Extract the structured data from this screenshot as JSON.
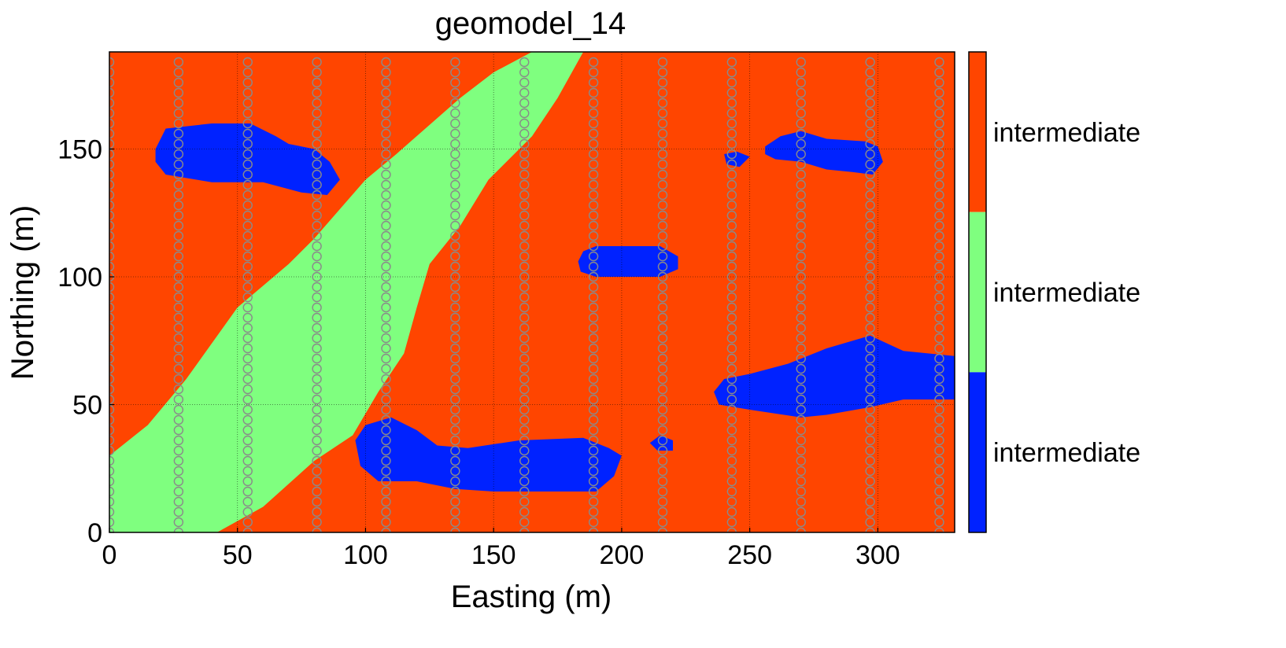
{
  "chart_data": {
    "type": "heatmap",
    "title": "geomodel_14",
    "xlabel": "Easting (m)",
    "ylabel": "Northing (m)",
    "xlim": [
      0,
      330
    ],
    "ylim": [
      0,
      188
    ],
    "xticks": [
      0,
      50,
      100,
      150,
      200,
      250,
      300
    ],
    "yticks": [
      0,
      50,
      100,
      150
    ],
    "grid": true,
    "colorbar": {
      "position": "right",
      "labels": [
        "intermediate",
        "intermediate",
        "intermediate"
      ],
      "colors": [
        "#ff4500",
        "#7fff7f",
        "#0022ff"
      ]
    },
    "facies": {
      "background": {
        "color": "#ff4500"
      },
      "channel": {
        "color": "#7fff7f",
        "lower_edge": [
          [
            0,
            30
          ],
          [
            15,
            42
          ],
          [
            30,
            60
          ],
          [
            50,
            88
          ],
          [
            70,
            105
          ],
          [
            80,
            115
          ],
          [
            100,
            138
          ],
          [
            112,
            148
          ],
          [
            137,
            170
          ],
          [
            150,
            180
          ],
          [
            165,
            188
          ]
        ],
        "upper_edge": [
          [
            42,
            0
          ],
          [
            60,
            10
          ],
          [
            80,
            28
          ],
          [
            95,
            38
          ],
          [
            105,
            55
          ],
          [
            115,
            70
          ],
          [
            120,
            88
          ],
          [
            125,
            105
          ],
          [
            137,
            120
          ],
          [
            148,
            138
          ],
          [
            165,
            155
          ],
          [
            175,
            170
          ],
          [
            185,
            188
          ]
        ]
      },
      "lenses": [
        {
          "color": "#0022ff",
          "outline": [
            [
              18,
              150
            ],
            [
              22,
              158
            ],
            [
              40,
              160
            ],
            [
              55,
              160
            ],
            [
              65,
              155
            ],
            [
              70,
              152
            ],
            [
              80,
              150
            ],
            [
              86,
              145
            ],
            [
              90,
              138
            ],
            [
              85,
              132
            ],
            [
              75,
              133
            ],
            [
              60,
              137
            ],
            [
              40,
              137
            ],
            [
              22,
              140
            ],
            [
              18,
              145
            ]
          ]
        },
        {
          "color": "#0022ff",
          "outline": [
            [
              96,
              36
            ],
            [
              100,
              42
            ],
            [
              110,
              45
            ],
            [
              120,
              40
            ],
            [
              128,
              34
            ],
            [
              140,
              33
            ],
            [
              160,
              36
            ],
            [
              185,
              37
            ],
            [
              195,
              33
            ],
            [
              200,
              30
            ],
            [
              197,
              22
            ],
            [
              190,
              16
            ],
            [
              180,
              16
            ],
            [
              165,
              16
            ],
            [
              150,
              16
            ],
            [
              135,
              17
            ],
            [
              120,
              20
            ],
            [
              105,
              20
            ],
            [
              98,
              26
            ]
          ]
        },
        {
          "color": "#0022ff",
          "outline": [
            [
              183,
              106
            ],
            [
              185,
              110
            ],
            [
              190,
              112
            ],
            [
              215,
              112
            ],
            [
              222,
              108
            ],
            [
              222,
              103
            ],
            [
              215,
              100
            ],
            [
              190,
              100
            ],
            [
              184,
              102
            ]
          ]
        },
        {
          "color": "#0022ff",
          "outline": [
            [
              211,
              35
            ],
            [
              215,
              38
            ],
            [
              220,
              36
            ],
            [
              220,
              32
            ],
            [
              214,
              32
            ]
          ]
        },
        {
          "color": "#0022ff",
          "outline": [
            [
              240,
              148
            ],
            [
              245,
              149
            ],
            [
              250,
              147
            ],
            [
              246,
              143
            ],
            [
              241,
              144
            ]
          ]
        },
        {
          "color": "#0022ff",
          "outline": [
            [
              256,
              151
            ],
            [
              262,
              155
            ],
            [
              270,
              157
            ],
            [
              280,
              154
            ],
            [
              295,
              153
            ],
            [
              300,
              151
            ],
            [
              302,
              145
            ],
            [
              298,
              140
            ],
            [
              290,
              141
            ],
            [
              280,
              142
            ],
            [
              270,
              145
            ],
            [
              260,
              146
            ],
            [
              256,
              148
            ]
          ]
        },
        {
          "color": "#0022ff",
          "outline": [
            [
              236,
              55
            ],
            [
              240,
              60
            ],
            [
              250,
              62
            ],
            [
              265,
              66
            ],
            [
              280,
              72
            ],
            [
              297,
              77
            ],
            [
              310,
              71
            ],
            [
              330,
              69
            ],
            [
              330,
              52
            ],
            [
              310,
              52
            ],
            [
              297,
              49
            ],
            [
              280,
              46
            ],
            [
              270,
              45
            ],
            [
              250,
              48
            ],
            [
              238,
              50
            ]
          ]
        }
      ]
    },
    "wells": {
      "x": [
        0,
        27,
        54,
        81,
        108,
        135,
        162,
        189,
        216,
        243,
        270,
        297,
        324
      ],
      "sample_spacing": 4,
      "sample_ymin": 0,
      "sample_ymax": 184
    }
  }
}
